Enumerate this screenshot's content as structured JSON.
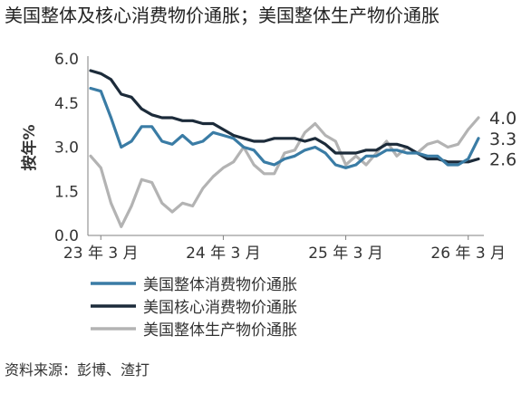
{
  "title": "美国整体及核心消费物价通胀；美国整体生产物价通胀",
  "source": "资料来源：彭博、渣打",
  "chart_data": {
    "type": "line",
    "ylabel": "按年%",
    "ylim": [
      0,
      6
    ],
    "yticks": [
      "0.0",
      "1.5",
      "3.0",
      "4.5",
      "6.0"
    ],
    "xticks": [
      "23 年 3 月",
      "24 年 3 月",
      "25 年 3 月",
      "26 年 3 月"
    ],
    "x": [
      "2023-02",
      "2023-03",
      "2023-04",
      "2023-05",
      "2023-06",
      "2023-07",
      "2023-08",
      "2023-09",
      "2023-10",
      "2023-11",
      "2023-12",
      "2024-01",
      "2024-02",
      "2024-03",
      "2024-04",
      "2024-05",
      "2024-06",
      "2024-07",
      "2024-08",
      "2024-09",
      "2024-10",
      "2024-11",
      "2024-12",
      "2025-01",
      "2025-02",
      "2025-03",
      "2025-04",
      "2025-05",
      "2025-06",
      "2025-07",
      "2025-08",
      "2025-09",
      "2025-10",
      "2025-11",
      "2025-12",
      "2026-01",
      "2026-02",
      "2026-03",
      "2026-04"
    ],
    "legend_position": "bottom",
    "series": [
      {
        "name": "美国整体消费物价通胀",
        "color": "#3a7ca5",
        "end_label": "3.3",
        "values": [
          5.0,
          4.9,
          4.0,
          3.0,
          3.2,
          3.7,
          3.7,
          3.2,
          3.1,
          3.4,
          3.1,
          3.2,
          3.5,
          3.4,
          3.3,
          3.0,
          2.9,
          2.5,
          2.4,
          2.6,
          2.7,
          2.9,
          3.0,
          2.8,
          2.4,
          2.3,
          2.4,
          2.7,
          2.7,
          2.9,
          2.9,
          2.8,
          2.8,
          2.7,
          2.7,
          2.4,
          2.4,
          2.6,
          3.3
        ]
      },
      {
        "name": "美国核心消费物价通胀",
        "color": "#1c2b3a",
        "end_label": "2.6",
        "values": [
          5.6,
          5.5,
          5.3,
          4.8,
          4.7,
          4.3,
          4.1,
          4.0,
          4.0,
          3.9,
          3.9,
          3.8,
          3.8,
          3.6,
          3.4,
          3.3,
          3.2,
          3.2,
          3.3,
          3.3,
          3.3,
          3.2,
          3.3,
          3.1,
          2.8,
          2.8,
          2.8,
          2.9,
          2.9,
          3.1,
          3.1,
          3.0,
          2.8,
          2.6,
          2.6,
          2.5,
          2.5,
          2.5,
          2.6
        ]
      },
      {
        "name": "美国整体生产物价通胀",
        "color": "#b3b3b3",
        "end_label": "4.0",
        "values": [
          2.7,
          2.3,
          1.1,
          0.3,
          1.0,
          1.9,
          1.8,
          1.1,
          0.8,
          1.1,
          1.0,
          1.6,
          2.0,
          2.3,
          2.5,
          3.0,
          2.4,
          2.1,
          2.1,
          2.8,
          2.9,
          3.5,
          3.8,
          3.4,
          3.2,
          2.4,
          2.7,
          2.4,
          2.8,
          3.2,
          2.7,
          3.0,
          2.8,
          3.1,
          3.2,
          3.0,
          3.1,
          3.6,
          4.0
        ]
      }
    ]
  }
}
